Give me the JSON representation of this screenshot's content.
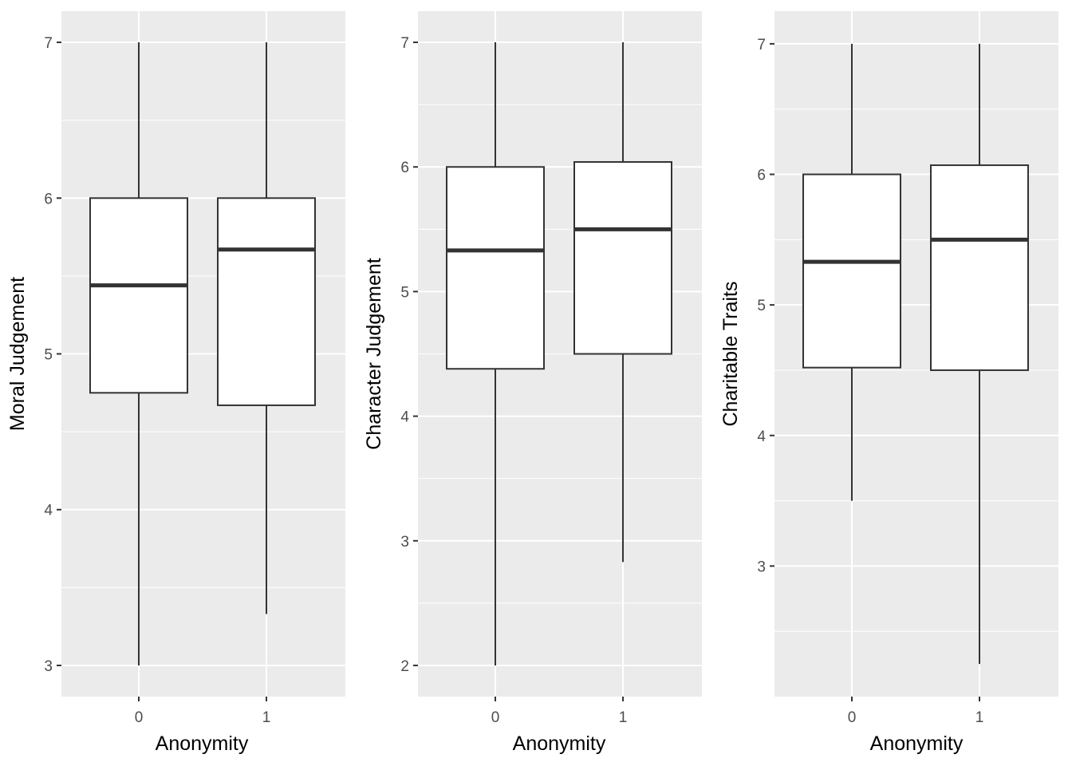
{
  "chart_data": [
    {
      "type": "boxplot",
      "xlabel": "Anonymity",
      "ylabel": "Moral Judgement",
      "categories": [
        "0",
        "1"
      ],
      "ylim": [
        2.8,
        7.2
      ],
      "yticks": [
        3,
        4,
        5,
        6,
        7
      ],
      "yticklabels": [
        "3",
        "4",
        "5",
        "6",
        "7"
      ],
      "boxes": [
        {
          "category": "0",
          "min": 3.0,
          "q1": 4.75,
          "median": 5.44,
          "q3": 6.0,
          "max": 7.0
        },
        {
          "category": "1",
          "min": 3.33,
          "q1": 4.67,
          "median": 5.67,
          "q3": 6.0,
          "max": 7.0
        }
      ],
      "grid": true,
      "background": "#ebebeb"
    },
    {
      "type": "boxplot",
      "xlabel": "Anonymity",
      "ylabel": "Character Judgement",
      "categories": [
        "0",
        "1"
      ],
      "ylim": [
        1.75,
        7.25
      ],
      "yticks": [
        2,
        3,
        4,
        5,
        6,
        7
      ],
      "yticklabels": [
        "2",
        "3",
        "4",
        "5",
        "6",
        "7"
      ],
      "boxes": [
        {
          "category": "0",
          "min": 2.0,
          "q1": 4.38,
          "median": 5.33,
          "q3": 6.0,
          "max": 7.0
        },
        {
          "category": "1",
          "min": 2.83,
          "q1": 4.5,
          "median": 5.5,
          "q3": 6.04,
          "max": 7.0
        }
      ],
      "grid": true,
      "background": "#ebebeb"
    },
    {
      "type": "boxplot",
      "xlabel": "Anonymity",
      "ylabel": "Charitable Traits",
      "categories": [
        "0",
        "1"
      ],
      "ylim": [
        2.0,
        7.25
      ],
      "yticks": [
        3,
        4,
        5,
        6,
        7
      ],
      "yticklabels": [
        "3",
        "4",
        "5",
        "6",
        "7"
      ],
      "boxes": [
        {
          "category": "0",
          "min": 3.5,
          "q1": 4.52,
          "median": 5.33,
          "q3": 6.0,
          "max": 7.0
        },
        {
          "category": "1",
          "min": 2.25,
          "q1": 4.5,
          "median": 5.5,
          "q3": 6.07,
          "max": 7.0
        }
      ],
      "grid": true,
      "background": "#ebebeb"
    }
  ],
  "colors": {
    "panel_background": "#ebebeb",
    "grid": "#ffffff",
    "box_fill": "#ffffff",
    "box_line": "#333333",
    "tick_label": "#4d4d4d",
    "tick_mark": "#333333",
    "axis_title": "#000000"
  }
}
